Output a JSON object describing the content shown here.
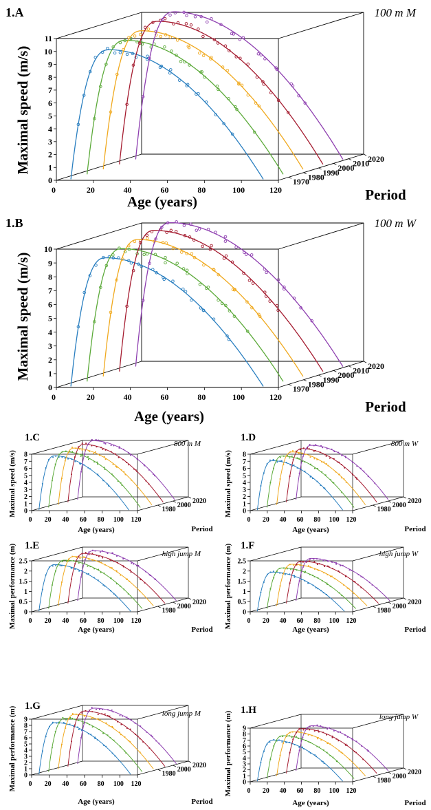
{
  "colors": {
    "1970": "#2a7fc0",
    "1980": "#5caa3a",
    "1990": "#f0a91e",
    "2000": "#a51c30",
    "2010": "#8e3fb0"
  },
  "chart_data": [
    {
      "id": "1.A",
      "panel_label": "1.A",
      "event": "100 m M",
      "type": "scatter",
      "xlabel": "Age (years)",
      "ylabel": "Maximal speed (m/s)",
      "zlabel": "Period",
      "xlim": [
        0,
        120
      ],
      "ylim": [
        0,
        11
      ],
      "xticks": [
        "0",
        "20",
        "40",
        "60",
        "80",
        "100",
        "120"
      ],
      "yticks": [
        "0",
        "1",
        "2",
        "3",
        "4",
        "5",
        "6",
        "7",
        "8",
        "9",
        "10",
        "11"
      ],
      "zticks": [
        "1970",
        "1980",
        "1990",
        "2000",
        "2010",
        "2020"
      ],
      "periods": [
        1970,
        1980,
        1990,
        2000,
        2010
      ],
      "peak": [
        10.05,
        10.4,
        10.75,
        11.1,
        11.45
      ],
      "peak_age": 27,
      "start_age": 6,
      "end_age": [
        110,
        112,
        114,
        116,
        118
      ]
    },
    {
      "id": "1.B",
      "panel_label": "1.B",
      "event": "100 m W",
      "type": "scatter",
      "xlabel": "Age (years)",
      "ylabel": "Maximal speed (m/s)",
      "zlabel": "Period",
      "xlim": [
        0,
        120
      ],
      "ylim": [
        0,
        10
      ],
      "xticks": [
        "0",
        "20",
        "40",
        "60",
        "80",
        "100",
        "120"
      ],
      "yticks": [
        "0",
        "1",
        "2",
        "3",
        "4",
        "5",
        "6",
        "7",
        "8",
        "9",
        "10"
      ],
      "zticks": [
        "1970",
        "1980",
        "1990",
        "2000",
        "2010",
        "2020"
      ],
      "periods": [
        1970,
        1980,
        1990,
        2000,
        2010
      ],
      "peak": [
        9.3,
        9.6,
        9.9,
        10.2,
        10.4
      ],
      "peak_age": 25,
      "start_age": 6,
      "end_age": [
        110,
        112,
        114,
        116,
        118
      ]
    },
    {
      "id": "1.C",
      "panel_label": "1.C",
      "event": "800 m M",
      "type": "scatter",
      "xlabel": "Age (years)",
      "ylabel": "Maximal speed (m/s)",
      "zlabel": "Period",
      "xlim": [
        0,
        120
      ],
      "ylim": [
        0,
        8
      ],
      "xticks": [
        "0",
        "20",
        "40",
        "60",
        "80",
        "100",
        "120"
      ],
      "yticks": [
        "0",
        "1",
        "2",
        "3",
        "4",
        "5",
        "6",
        "7",
        "8"
      ],
      "zticks": [
        "1980",
        "2000",
        "2020"
      ],
      "periods": [
        1970,
        1980,
        1990,
        2000,
        2010
      ],
      "peak": [
        7.7,
        7.9,
        8.05,
        8.2,
        8.35
      ],
      "peak_age": 24,
      "start_age": 6,
      "end_age": [
        108,
        110,
        112,
        114,
        116
      ]
    },
    {
      "id": "1.D",
      "panel_label": "1.D",
      "event": "800 m W",
      "type": "scatter",
      "xlabel": "Age (years)",
      "ylabel": "Maximal speed (m/s)",
      "zlabel": "Period",
      "xlim": [
        0,
        120
      ],
      "ylim": [
        0,
        8
      ],
      "xticks": [
        "0",
        "20",
        "40",
        "60",
        "80",
        "100",
        "120"
      ],
      "yticks": [
        "0",
        "1",
        "2",
        "3",
        "4",
        "5",
        "6",
        "7",
        "8"
      ],
      "zticks": [
        "1980",
        "2000",
        "2020"
      ],
      "periods": [
        1970,
        1980,
        1990,
        2000,
        2010
      ],
      "peak": [
        7.0,
        7.3,
        7.5,
        7.6,
        7.7
      ],
      "peak_age": 24,
      "start_age": 6,
      "end_age": [
        106,
        108,
        110,
        112,
        114
      ]
    },
    {
      "id": "1.E",
      "panel_label": "1.E",
      "event": "high jump M",
      "type": "scatter",
      "xlabel": "Age (years)",
      "ylabel": "Maximal performance (m)",
      "zlabel": "Period",
      "xlim": [
        0,
        120
      ],
      "ylim": [
        0,
        2.5
      ],
      "xticks": [
        "0",
        "20",
        "40",
        "60",
        "80",
        "100",
        "120"
      ],
      "yticks": [
        "0",
        "0.5",
        "1",
        "1.5",
        "2",
        "2.5"
      ],
      "zticks": [
        "1980",
        "2000",
        "2020"
      ],
      "periods": [
        1970,
        1980,
        1990,
        2000,
        2010
      ],
      "peak": [
        2.29,
        2.38,
        2.43,
        2.45,
        2.46
      ],
      "peak_age": 24,
      "start_age": 6,
      "end_age": [
        110,
        112,
        114,
        116,
        118
      ]
    },
    {
      "id": "1.F",
      "panel_label": "1.F",
      "event": "high jump W",
      "type": "scatter",
      "xlabel": "Age (years)",
      "ylabel": "Maximal performance (m)",
      "zlabel": "Period",
      "xlim": [
        0,
        120
      ],
      "ylim": [
        0,
        2.5
      ],
      "xticks": [
        "0",
        "20",
        "40",
        "60",
        "80",
        "100",
        "120"
      ],
      "yticks": [
        "0",
        "0.5",
        "1",
        "1.5",
        "2",
        "2.5"
      ],
      "zticks": [
        "1980",
        "2000",
        "2020"
      ],
      "periods": [
        1970,
        1980,
        1990,
        2000,
        2010
      ],
      "peak": [
        1.92,
        2.0,
        2.05,
        2.07,
        2.08
      ],
      "peak_age": 24,
      "start_age": 6,
      "end_age": [
        108,
        110,
        112,
        114,
        116
      ]
    },
    {
      "id": "1.G",
      "panel_label": "1.G",
      "event": "long jump M",
      "type": "scatter",
      "xlabel": "Age (years)",
      "ylabel": "Maximal performance (m)",
      "zlabel": "Period",
      "xlim": [
        0,
        120
      ],
      "ylim": [
        0,
        9
      ],
      "xticks": [
        "0",
        "20",
        "40",
        "60",
        "80",
        "100",
        "120"
      ],
      "yticks": [
        "0",
        "1",
        "2",
        "3",
        "4",
        "5",
        "6",
        "7",
        "8",
        "9"
      ],
      "zticks": [
        "1980",
        "2000",
        "2020"
      ],
      "periods": [
        1970,
        1980,
        1990,
        2000,
        2010
      ],
      "peak": [
        8.35,
        8.6,
        8.85,
        8.95,
        9.0
      ],
      "peak_age": 25,
      "start_age": 6,
      "end_age": [
        110,
        112,
        114,
        116,
        118
      ]
    },
    {
      "id": "1.H",
      "panel_label": "1.H",
      "event": "long jump W",
      "type": "scatter",
      "xlabel": "Age (years)",
      "ylabel": "Maximal performance (m)",
      "zlabel": "Period",
      "xlim": [
        0,
        120
      ],
      "ylim": [
        0,
        9
      ],
      "xticks": [
        "0",
        "20",
        "40",
        "60",
        "80",
        "100",
        "120"
      ],
      "yticks": [
        "0",
        "1",
        "2",
        "3",
        "4",
        "5",
        "6",
        "7",
        "8",
        "9"
      ],
      "zticks": [
        "1980",
        "2000",
        "2020"
      ],
      "periods": [
        1970,
        1980,
        1990,
        2000,
        2010
      ],
      "peak": [
        6.9,
        7.2,
        7.4,
        7.5,
        7.55
      ],
      "peak_age": 25,
      "start_age": 6,
      "end_age": [
        106,
        108,
        110,
        112,
        114
      ]
    }
  ]
}
